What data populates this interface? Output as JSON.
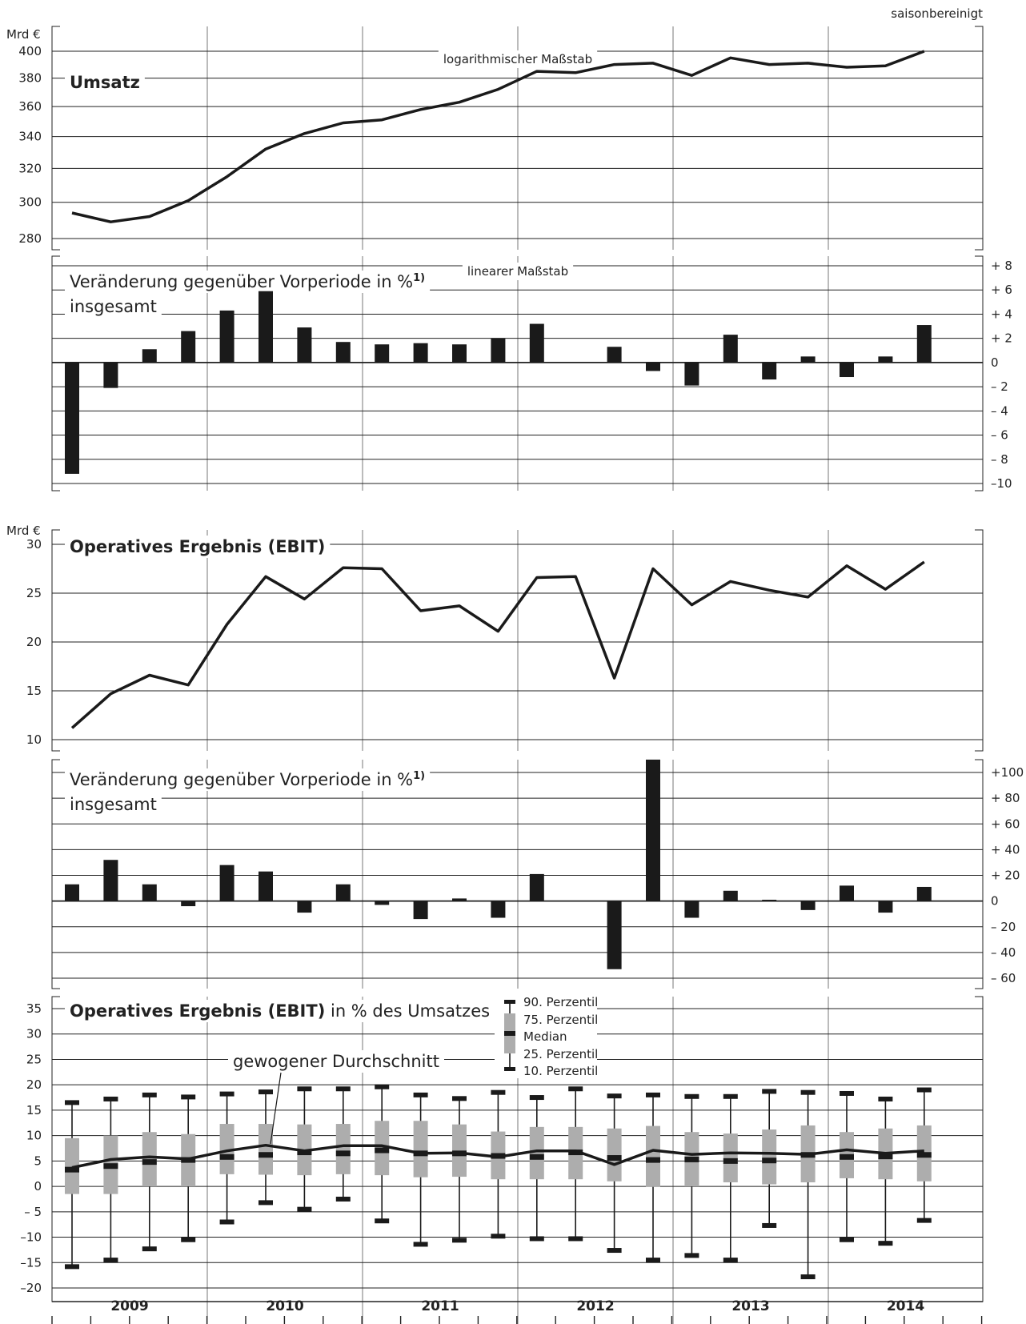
{
  "note_top": "saisonbereinigt",
  "chart_data": [
    {
      "type": "line",
      "title": "Umsatz",
      "unit": "Mrd €",
      "scale_note": "logarithmischer Maßstab",
      "yscale": "log",
      "ylim": [
        274,
        404
      ],
      "yticks": [
        "280",
        "300",
        "320",
        "340",
        "360",
        "380",
        "400"
      ],
      "x": [
        "2009 Q1",
        "2009 Q2",
        "2009 Q3",
        "2009 Q4",
        "2010 Q1",
        "2010 Q2",
        "2010 Q3",
        "2010 Q4",
        "2011 Q1",
        "2011 Q2",
        "2011 Q3",
        "2011 Q4",
        "2012 Q1",
        "2012 Q2",
        "2012 Q3",
        "2012 Q4",
        "2013 Q1",
        "2013 Q2",
        "2013 Q3",
        "2013 Q4",
        "2014 Q1",
        "2014 Q2",
        "2014 Q3"
      ],
      "values": [
        294,
        289,
        292,
        301,
        315,
        332,
        342,
        349,
        351,
        358,
        363,
        372,
        385,
        384,
        390,
        391,
        382,
        395,
        390,
        391,
        388,
        389,
        400
      ]
    },
    {
      "type": "bar",
      "title": "Veränderung gegenüber Vorperiode in %",
      "footnote_mark": "1)",
      "subtitle": "insgesamt",
      "scale_note": "linearer Maßstab",
      "ylim": [
        -10,
        8
      ],
      "yticks": [
        "+ 8",
        "+ 6",
        "+ 4",
        "+ 2",
        "0",
        "– 2",
        "– 4",
        "– 6",
        "– 8",
        "–10"
      ],
      "values": [
        -9.2,
        -2.1,
        1.1,
        2.6,
        4.3,
        5.9,
        2.9,
        1.7,
        1.5,
        1.6,
        1.5,
        2.0,
        3.2,
        null,
        1.3,
        -0.7,
        -1.9,
        2.3,
        -1.4,
        0.5,
        -1.2,
        0.5,
        3.1
      ]
    },
    {
      "type": "line",
      "title": "Operatives Ergebnis (EBIT)",
      "unit": "Mrd €",
      "ylim": [
        9,
        30.5
      ],
      "yticks": [
        "10",
        "15",
        "20",
        "25",
        "30"
      ],
      "values": [
        11.2,
        14.7,
        16.6,
        15.6,
        21.8,
        26.7,
        24.4,
        27.6,
        27.5,
        23.2,
        23.7,
        21.1,
        26.6,
        26.7,
        16.3,
        27.5,
        23.8,
        26.2,
        25.3,
        24.6,
        27.8,
        25.4,
        28.2
      ]
    },
    {
      "type": "bar",
      "title": "Veränderung gegenüber Vorperiode in %",
      "footnote_mark": "1)",
      "subtitle": "insgesamt",
      "ylim": [
        -60,
        110
      ],
      "yticks": [
        "+100",
        "+ 80",
        "+ 60",
        "+ 40",
        "+ 20",
        "0",
        "– 20",
        "– 40",
        "– 60"
      ],
      "values": [
        13,
        32,
        13,
        -4,
        28,
        23,
        -9,
        13,
        -3,
        -14,
        2,
        -13,
        21,
        null,
        -53,
        110,
        -13,
        8,
        1,
        -7,
        12,
        -9,
        11
      ]
    },
    {
      "type": "box",
      "title_bold": "Operatives Ergebnis (EBIT)",
      "title_rest": "in % des Umsatzes",
      "ylim": [
        -21,
        37
      ],
      "yticks": [
        "35",
        "30",
        "25",
        "20",
        "15",
        "10",
        "5",
        "0",
        "– 5",
        "–10",
        "–15",
        "–20"
      ],
      "legend": [
        "90. Perzentil",
        "75. Perzentil",
        "Median",
        "25. Perzentil",
        "10. Perzentil"
      ],
      "line_label": "gewogener Durchschnitt",
      "categories": [
        "2009",
        "2010",
        "2011",
        "2012",
        "2013",
        "2014"
      ],
      "p90": [
        16.5,
        17.2,
        18.0,
        17.6,
        18.2,
        18.6,
        19.2,
        19.2,
        19.6,
        18.0,
        17.3,
        18.5,
        17.5,
        19.2,
        17.8,
        18.0,
        17.7,
        17.7,
        18.7,
        18.5,
        18.3,
        17.2,
        19.0
      ],
      "p75": [
        9.5,
        10.0,
        10.7,
        10.3,
        12.3,
        12.3,
        12.2,
        12.3,
        12.9,
        12.9,
        12.2,
        10.8,
        11.7,
        11.7,
        11.4,
        11.9,
        10.7,
        10.4,
        11.2,
        12.0,
        10.7,
        11.4,
        12.0
      ],
      "median": [
        3.3,
        4.0,
        4.8,
        5.2,
        5.8,
        6.2,
        6.7,
        6.5,
        7.1,
        6.5,
        6.5,
        6.0,
        5.8,
        6.7,
        5.6,
        5.2,
        5.3,
        5.0,
        5.1,
        6.2,
        5.8,
        5.9,
        6.2
      ],
      "p25": [
        -1.5,
        -1.5,
        0.0,
        0.0,
        2.4,
        2.3,
        2.2,
        2.4,
        2.2,
        1.8,
        1.9,
        1.4,
        1.4,
        1.4,
        1.0,
        -0.1,
        0.0,
        0.8,
        0.4,
        0.8,
        1.6,
        1.4,
        1.0
      ],
      "p10": [
        -15.8,
        -14.5,
        -12.3,
        -10.5,
        -7.0,
        -3.2,
        -4.5,
        -2.5,
        -6.8,
        -11.4,
        -10.6,
        -9.8,
        -10.3,
        -10.3,
        -12.6,
        -14.5,
        -13.6,
        -14.5,
        -7.7,
        -17.8,
        -10.5,
        -11.2,
        -6.7
      ],
      "weighted_average": [
        3.7,
        5.3,
        5.8,
        5.4,
        7.0,
        8.1,
        7.0,
        8.0,
        8.0,
        6.5,
        6.6,
        5.8,
        7.0,
        7.0,
        4.3,
        7.1,
        6.3,
        6.6,
        6.5,
        6.3,
        7.2,
        6.5,
        7.0
      ]
    }
  ]
}
